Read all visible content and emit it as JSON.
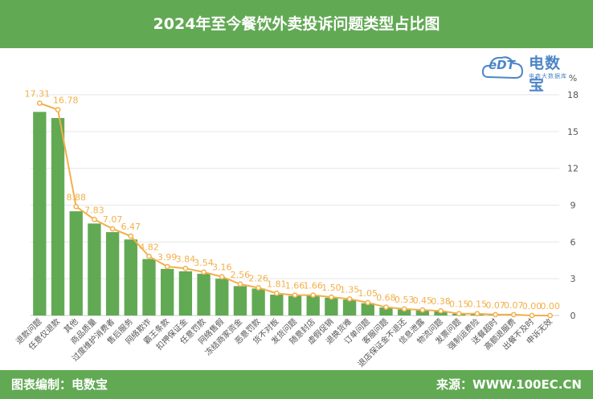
{
  "header": {
    "title": "2024年至今餐饮外卖投诉问题类型占比图"
  },
  "footer": {
    "left": "图表编制：电数宝",
    "right": "来源：WWW.100EC.CN"
  },
  "logo": {
    "name": "电数宝",
    "sub": "电商大数据库",
    "badge": "eDT"
  },
  "colors": {
    "header_bg": "#62a954",
    "bar": "#62a954",
    "line": "#f2b04a",
    "label": "#f2b04a",
    "axis_text": "#555555"
  },
  "chart_data": {
    "type": "bar",
    "categories": [
      "退款问题",
      "任意仅退款",
      "其他",
      "商品质量",
      "过度维护消费者",
      "售后服务",
      "网络欺诈",
      "霸王条款",
      "扣押保证金",
      "任意罚款",
      "网络售假",
      "冻结商家资金",
      "恶意罚款",
      "货不对板",
      "发货问题",
      "随意封店",
      "虚假促销",
      "退换货难",
      "订单问题",
      "客服问题",
      "退店保证金不退还",
      "信息泄露",
      "物流问题",
      "发票问题",
      "强制运费险",
      "送餐超时",
      "高额退服费",
      "出餐不及时",
      "申诉无效"
    ],
    "values": [
      17.31,
      16.78,
      8.88,
      7.83,
      7.07,
      6.47,
      4.82,
      3.99,
      3.84,
      3.54,
      3.16,
      2.56,
      2.26,
      1.81,
      1.66,
      1.66,
      1.5,
      1.35,
      1.05,
      0.68,
      0.53,
      0.45,
      0.38,
      0.15,
      0.15,
      0.07,
      0.07,
      0.0,
      0.0
    ],
    "bar_values": [
      16.6,
      16.1,
      8.5,
      7.5,
      6.8,
      6.2,
      4.6,
      3.8,
      3.6,
      3.4,
      3.0,
      2.4,
      2.2,
      1.7,
      1.6,
      1.6,
      1.45,
      1.3,
      1.0,
      0.65,
      0.5,
      0.42,
      0.35,
      0.14,
      0.14,
      0.06,
      0.06,
      0.0,
      0.0
    ],
    "y_ticks": [
      "0",
      "3",
      "6",
      "9",
      "12",
      "15",
      "18"
    ],
    "ylim": [
      0,
      18
    ],
    "unit": "%",
    "grid": true
  }
}
